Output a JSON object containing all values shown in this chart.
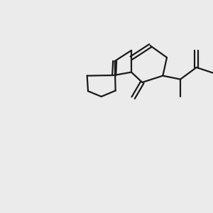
{
  "background_color": "#ebebeb",
  "bond_color": "#1a1a1a",
  "S_color": "#ccaa00",
  "N_color": "#0000ff",
  "O_color": "#ff0000",
  "C_color": "#1a1a1a",
  "linewidth": 1.5,
  "fontsize": 10
}
